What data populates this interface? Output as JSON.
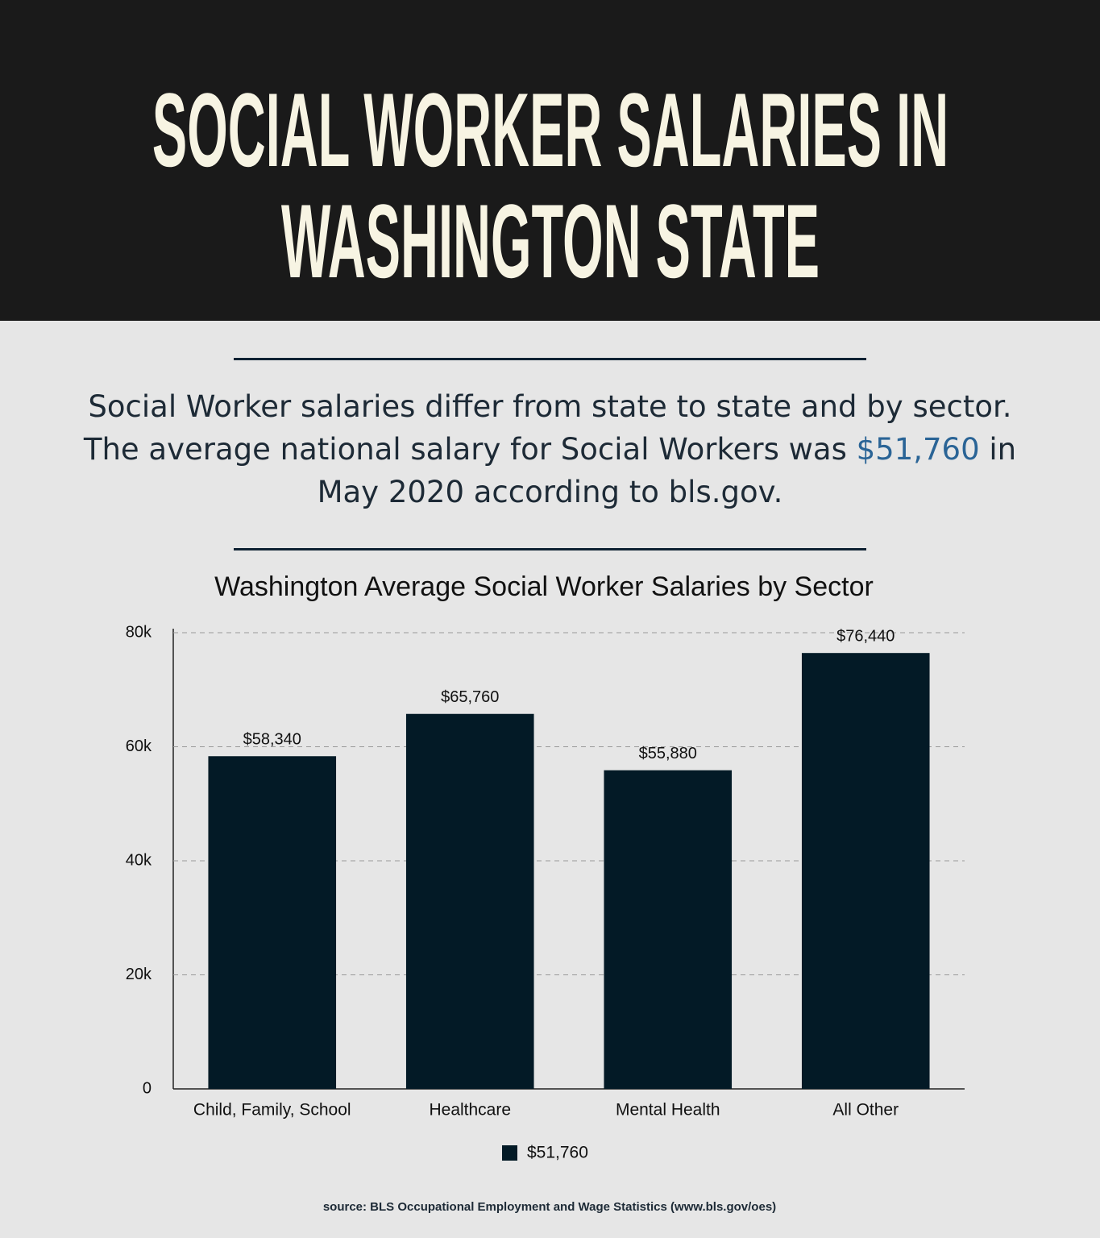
{
  "header": {
    "title": "SOCIAL WORKER SALARIES IN WASHINGTON STATE"
  },
  "intro": {
    "before": "Social Worker salaries differ from state to state and by sector. The average national salary for Social Workers was",
    "highlight": "$51,760",
    "after": "in May 2020 according to bls.gov."
  },
  "chart_data": {
    "type": "bar",
    "title": "Washington Average Social Worker Salaries by Sector",
    "categories": [
      "Child, Family, School",
      "Healthcare",
      "Mental Health",
      "All Other"
    ],
    "series": [
      {
        "name": "$51,760",
        "color": "#031a26",
        "values": [
          58340,
          65760,
          55880,
          76440
        ],
        "value_labels": [
          "$58,340",
          "$65,760",
          "$55,880",
          "$76,440"
        ]
      }
    ],
    "ylim": [
      0,
      80000
    ],
    "yticks": [
      0,
      {
        "value": 20000,
        "label": "20k"
      },
      {
        "value": 40000,
        "label": "40k"
      },
      {
        "value": 60000,
        "label": "60k"
      },
      {
        "value": 80000,
        "label": "80k"
      }
    ],
    "grid": true,
    "legend": "bottom"
  },
  "source": "source: BLS Occupational Employment and Wage Statistics (www.bls.gov/oes)"
}
